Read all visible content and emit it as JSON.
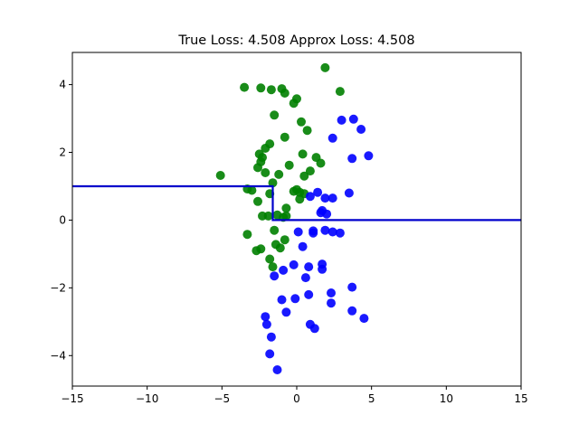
{
  "chart_data": {
    "type": "scatter",
    "title": "True Loss: 4.508 Approx Loss: 4.508",
    "xlabel": "",
    "ylabel": "",
    "xlim": [
      -15,
      15
    ],
    "ylim": [
      -4.9,
      4.95
    ],
    "xticks": [
      -15,
      -10,
      -5,
      0,
      5,
      10,
      15
    ],
    "yticks": [
      -4,
      -2,
      0,
      2,
      4
    ],
    "grid": false,
    "series": [
      {
        "color": "#008000",
        "points": [
          [
            1.9,
            4.5
          ],
          [
            -3.5,
            3.92
          ],
          [
            -2.4,
            3.9
          ],
          [
            -1.7,
            3.85
          ],
          [
            -1.0,
            3.88
          ],
          [
            -0.8,
            3.75
          ],
          [
            2.9,
            3.8
          ],
          [
            0.0,
            3.58
          ],
          [
            -0.2,
            3.45
          ],
          [
            -1.5,
            3.1
          ],
          [
            0.3,
            2.9
          ],
          [
            0.7,
            2.65
          ],
          [
            -0.8,
            2.45
          ],
          [
            -1.8,
            2.25
          ],
          [
            -2.1,
            2.12
          ],
          [
            -2.5,
            1.95
          ],
          [
            -2.3,
            1.85
          ],
          [
            0.4,
            1.95
          ],
          [
            1.3,
            1.85
          ],
          [
            1.6,
            1.68
          ],
          [
            -2.4,
            1.72
          ],
          [
            -2.6,
            1.55
          ],
          [
            -0.5,
            1.62
          ],
          [
            -2.1,
            1.4
          ],
          [
            -1.2,
            1.35
          ],
          [
            0.9,
            1.45
          ],
          [
            0.5,
            1.3
          ],
          [
            -5.1,
            1.32
          ],
          [
            -1.6,
            1.1
          ],
          [
            -3.3,
            0.92
          ],
          [
            -3.0,
            0.88
          ],
          [
            -1.8,
            0.78
          ],
          [
            0.0,
            0.9
          ],
          [
            -0.2,
            0.85
          ],
          [
            0.2,
            0.82
          ],
          [
            0.5,
            0.78
          ],
          [
            0.2,
            0.62
          ],
          [
            -2.6,
            0.55
          ],
          [
            -0.7,
            0.35
          ],
          [
            -2.3,
            0.12
          ],
          [
            -1.9,
            0.12
          ],
          [
            -1.3,
            0.15
          ],
          [
            -0.7,
            0.12
          ],
          [
            -0.9,
            0.08
          ],
          [
            -1.5,
            -0.3
          ],
          [
            -0.8,
            -0.58
          ],
          [
            -3.3,
            -0.42
          ],
          [
            -1.4,
            -0.72
          ],
          [
            -1.1,
            -0.82
          ],
          [
            -2.4,
            -0.85
          ],
          [
            -2.7,
            -0.9
          ],
          [
            -1.8,
            -1.15
          ],
          [
            -1.6,
            -1.38
          ]
        ]
      },
      {
        "color": "#0000ff",
        "points": [
          [
            3.8,
            2.98
          ],
          [
            3.0,
            2.95
          ],
          [
            4.3,
            2.68
          ],
          [
            2.4,
            2.42
          ],
          [
            4.8,
            1.9
          ],
          [
            3.7,
            1.82
          ],
          [
            1.4,
            0.82
          ],
          [
            0.9,
            0.7
          ],
          [
            1.9,
            0.65
          ],
          [
            2.4,
            0.65
          ],
          [
            3.5,
            0.8
          ],
          [
            1.7,
            0.28
          ],
          [
            1.6,
            0.22
          ],
          [
            2.0,
            0.18
          ],
          [
            0.1,
            -0.35
          ],
          [
            1.1,
            -0.32
          ],
          [
            1.1,
            -0.38
          ],
          [
            1.9,
            -0.3
          ],
          [
            2.4,
            -0.35
          ],
          [
            2.9,
            -0.38
          ],
          [
            0.4,
            -0.78
          ],
          [
            1.7,
            -1.3
          ],
          [
            -0.2,
            -1.32
          ],
          [
            0.8,
            -1.38
          ],
          [
            1.7,
            -1.45
          ],
          [
            -0.9,
            -1.48
          ],
          [
            -1.5,
            -1.65
          ],
          [
            0.6,
            -1.7
          ],
          [
            3.7,
            -1.98
          ],
          [
            2.3,
            -2.15
          ],
          [
            0.8,
            -2.2
          ],
          [
            -1.0,
            -2.35
          ],
          [
            -0.1,
            -2.32
          ],
          [
            2.3,
            -2.45
          ],
          [
            -0.7,
            -2.72
          ],
          [
            3.7,
            -2.68
          ],
          [
            4.5,
            -2.9
          ],
          [
            -2.1,
            -2.85
          ],
          [
            -2.0,
            -3.08
          ],
          [
            0.9,
            -3.08
          ],
          [
            1.2,
            -3.2
          ],
          [
            -1.7,
            -3.45
          ],
          [
            -1.8,
            -3.95
          ],
          [
            -1.3,
            -4.42
          ]
        ]
      }
    ],
    "decision_boundary": {
      "color": "#0000cc",
      "points": [
        [
          -15,
          1.0
        ],
        [
          -1.6,
          1.0
        ],
        [
          -1.6,
          0.0
        ],
        [
          15,
          0.0
        ]
      ]
    }
  }
}
